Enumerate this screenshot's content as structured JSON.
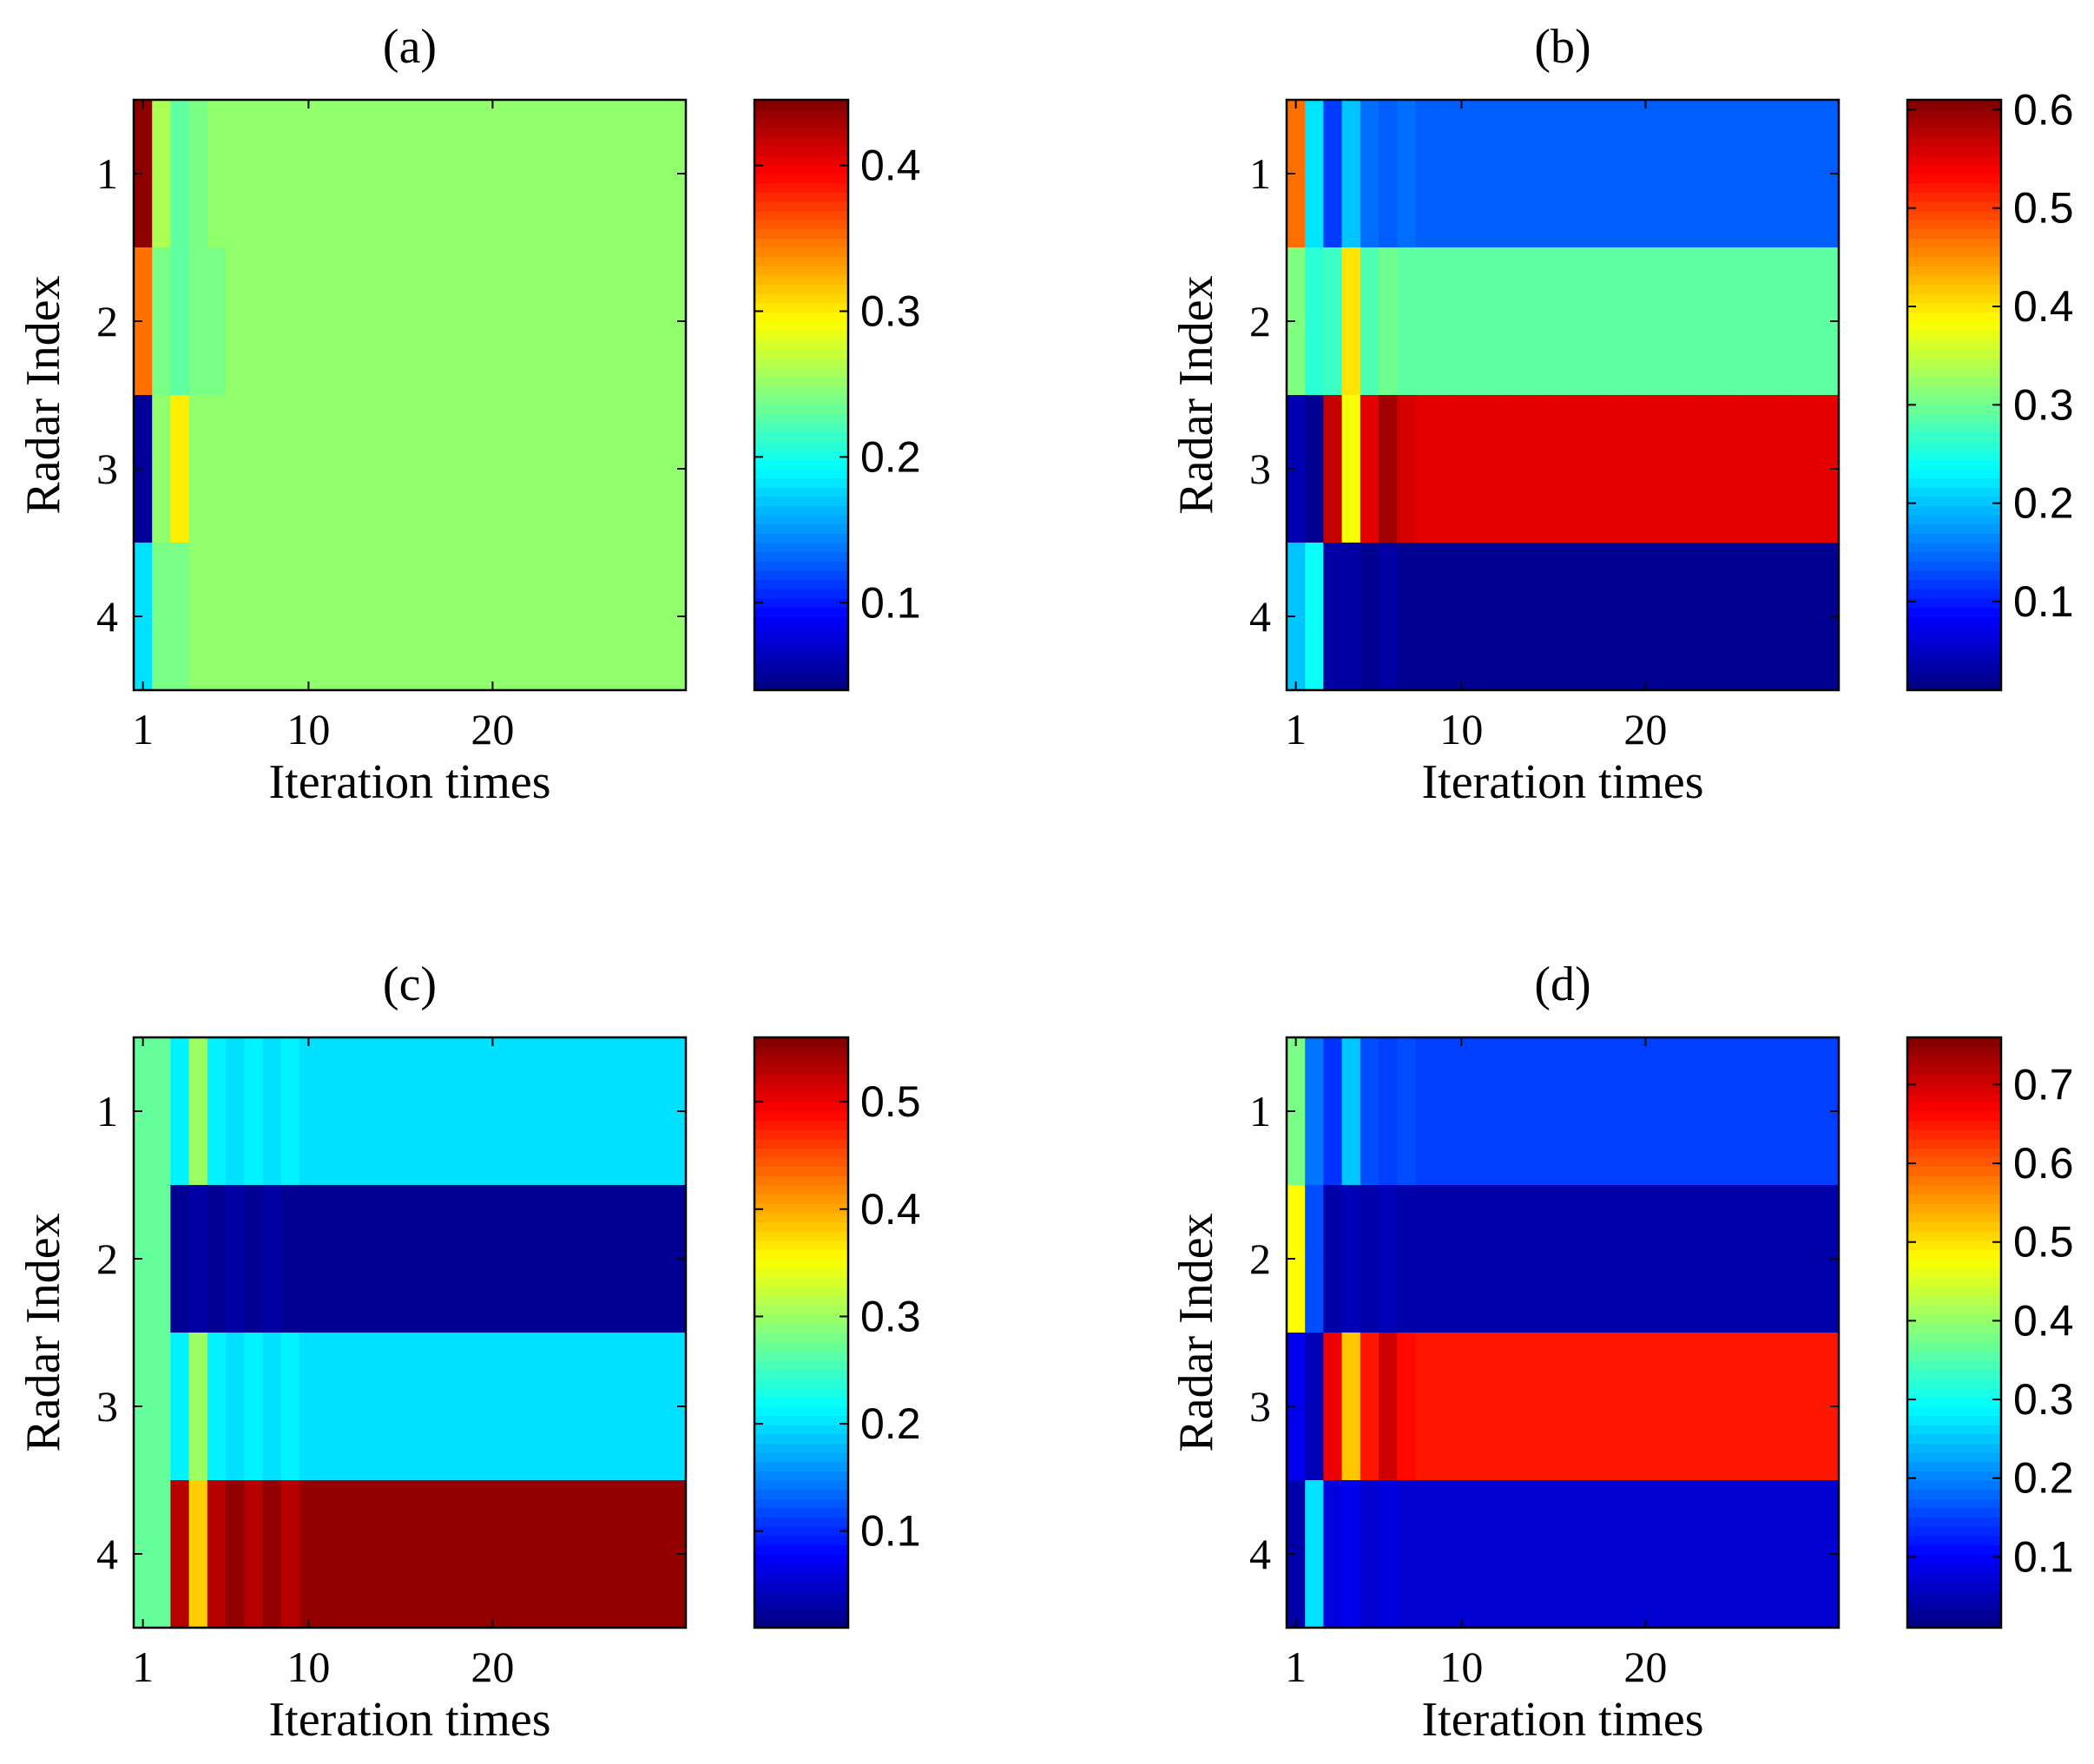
{
  "figure": {
    "colormap": "jet"
  },
  "chart_data": [
    {
      "type": "heatmap",
      "title": "(a)",
      "xlabel": "Iteration times",
      "ylabel": "Radar Index",
      "xlim": [
        0.5,
        30.5
      ],
      "ylim": [
        0.5,
        4.5
      ],
      "xticks": [
        1,
        10,
        20
      ],
      "xtick_labels": [
        "1",
        "10",
        "20"
      ],
      "yticks": [
        1,
        2,
        3,
        4
      ],
      "ytick_labels": [
        "1",
        "2",
        "3",
        "4"
      ],
      "clim": [
        0.04,
        0.445
      ],
      "colorbar_ticks": [
        0.1,
        0.2,
        0.3,
        0.4
      ],
      "colorbar_tick_labels": [
        "0.1",
        "0.2",
        "0.3",
        "0.4"
      ],
      "rows": [
        [
          0.44,
          0.26,
          0.23,
          0.24,
          0.25,
          0.25,
          0.25,
          0.25,
          0.25,
          0.25,
          0.25,
          0.25,
          0.25,
          0.25,
          0.25,
          0.25,
          0.25,
          0.25,
          0.25,
          0.25,
          0.25,
          0.25,
          0.25,
          0.25,
          0.25,
          0.25,
          0.25,
          0.25,
          0.25,
          0.25
        ],
        [
          0.35,
          0.24,
          0.23,
          0.24,
          0.24,
          0.25,
          0.25,
          0.25,
          0.25,
          0.25,
          0.25,
          0.25,
          0.25,
          0.25,
          0.25,
          0.25,
          0.25,
          0.25,
          0.25,
          0.25,
          0.25,
          0.25,
          0.25,
          0.25,
          0.25,
          0.25,
          0.25,
          0.25,
          0.25,
          0.25
        ],
        [
          0.05,
          0.25,
          0.3,
          0.25,
          0.25,
          0.25,
          0.25,
          0.25,
          0.25,
          0.25,
          0.25,
          0.25,
          0.25,
          0.25,
          0.25,
          0.25,
          0.25,
          0.25,
          0.25,
          0.25,
          0.25,
          0.25,
          0.25,
          0.25,
          0.25,
          0.25,
          0.25,
          0.25,
          0.25,
          0.25
        ],
        [
          0.18,
          0.24,
          0.24,
          0.25,
          0.25,
          0.25,
          0.25,
          0.25,
          0.25,
          0.25,
          0.25,
          0.25,
          0.25,
          0.25,
          0.25,
          0.25,
          0.25,
          0.25,
          0.25,
          0.25,
          0.25,
          0.25,
          0.25,
          0.25,
          0.25,
          0.25,
          0.25,
          0.25,
          0.25,
          0.25
        ]
      ]
    },
    {
      "type": "heatmap",
      "title": "(b)",
      "xlabel": "Iteration times",
      "ylabel": "Radar Index",
      "xlim": [
        0.5,
        30.5
      ],
      "ylim": [
        0.5,
        4.5
      ],
      "xticks": [
        1,
        10,
        20
      ],
      "xtick_labels": [
        "1",
        "10",
        "20"
      ],
      "yticks": [
        1,
        2,
        3,
        4
      ],
      "ytick_labels": [
        "1",
        "2",
        "3",
        "4"
      ],
      "clim": [
        0.01,
        0.61
      ],
      "colorbar_ticks": [
        0.1,
        0.2,
        0.3,
        0.4,
        0.5,
        0.6
      ],
      "colorbar_tick_labels": [
        "0.1",
        "0.2",
        "0.3",
        "0.4",
        "0.5",
        "0.6"
      ],
      "rows": [
        [
          0.47,
          0.22,
          0.12,
          0.2,
          0.15,
          0.14,
          0.15,
          0.14,
          0.14,
          0.14,
          0.14,
          0.14,
          0.14,
          0.14,
          0.14,
          0.14,
          0.14,
          0.14,
          0.14,
          0.14,
          0.14,
          0.14,
          0.14,
          0.14,
          0.14,
          0.14,
          0.14,
          0.14,
          0.14,
          0.14
        ],
        [
          0.31,
          0.26,
          0.27,
          0.4,
          0.28,
          0.3,
          0.29,
          0.29,
          0.29,
          0.29,
          0.29,
          0.29,
          0.29,
          0.29,
          0.29,
          0.29,
          0.29,
          0.29,
          0.29,
          0.29,
          0.29,
          0.29,
          0.29,
          0.29,
          0.29,
          0.29,
          0.29,
          0.29,
          0.29,
          0.29
        ],
        [
          0.04,
          0.02,
          0.57,
          0.38,
          0.55,
          0.59,
          0.56,
          0.55,
          0.55,
          0.55,
          0.55,
          0.55,
          0.55,
          0.55,
          0.55,
          0.55,
          0.55,
          0.55,
          0.55,
          0.55,
          0.55,
          0.55,
          0.55,
          0.55,
          0.55,
          0.55,
          0.55,
          0.55,
          0.55,
          0.55
        ],
        [
          0.2,
          0.24,
          0.03,
          0.03,
          0.02,
          0.03,
          0.02,
          0.02,
          0.02,
          0.02,
          0.02,
          0.02,
          0.02,
          0.02,
          0.02,
          0.02,
          0.02,
          0.02,
          0.02,
          0.02,
          0.02,
          0.02,
          0.02,
          0.02,
          0.02,
          0.02,
          0.02,
          0.02,
          0.02,
          0.02
        ]
      ]
    },
    {
      "type": "heatmap",
      "title": "(c)",
      "xlabel": "Iteration times",
      "ylabel": "Radar Index",
      "xlim": [
        0.5,
        30.5
      ],
      "ylim": [
        0.5,
        4.5
      ],
      "xticks": [
        1,
        10,
        20
      ],
      "xtick_labels": [
        "1",
        "10",
        "20"
      ],
      "yticks": [
        1,
        2,
        3,
        4
      ],
      "ytick_labels": [
        "1",
        "2",
        "3",
        "4"
      ],
      "clim": [
        0.01,
        0.56
      ],
      "colorbar_ticks": [
        0.1,
        0.2,
        0.3,
        0.4,
        0.5
      ],
      "colorbar_tick_labels": [
        "0.1",
        "0.2",
        "0.3",
        "0.4",
        "0.5"
      ],
      "rows": [
        [
          0.27,
          0.27,
          0.21,
          0.3,
          0.21,
          0.2,
          0.21,
          0.2,
          0.21,
          0.2,
          0.2,
          0.2,
          0.2,
          0.2,
          0.2,
          0.2,
          0.2,
          0.2,
          0.2,
          0.2,
          0.2,
          0.2,
          0.2,
          0.2,
          0.2,
          0.2,
          0.2,
          0.2,
          0.2,
          0.2
        ],
        [
          0.27,
          0.27,
          0.02,
          0.03,
          0.02,
          0.03,
          0.02,
          0.03,
          0.02,
          0.02,
          0.02,
          0.02,
          0.02,
          0.02,
          0.02,
          0.02,
          0.02,
          0.02,
          0.02,
          0.02,
          0.02,
          0.02,
          0.02,
          0.02,
          0.02,
          0.02,
          0.02,
          0.02,
          0.02,
          0.02
        ],
        [
          0.27,
          0.27,
          0.21,
          0.3,
          0.21,
          0.2,
          0.21,
          0.2,
          0.21,
          0.2,
          0.2,
          0.2,
          0.2,
          0.2,
          0.2,
          0.2,
          0.2,
          0.2,
          0.2,
          0.2,
          0.2,
          0.2,
          0.2,
          0.2,
          0.2,
          0.2,
          0.2,
          0.2,
          0.2,
          0.2
        ],
        [
          0.27,
          0.27,
          0.53,
          0.38,
          0.53,
          0.55,
          0.53,
          0.55,
          0.53,
          0.55,
          0.55,
          0.55,
          0.55,
          0.55,
          0.55,
          0.55,
          0.55,
          0.55,
          0.55,
          0.55,
          0.55,
          0.55,
          0.55,
          0.55,
          0.55,
          0.55,
          0.55,
          0.55,
          0.55,
          0.55
        ]
      ]
    },
    {
      "type": "heatmap",
      "title": "(d)",
      "xlabel": "Iteration times",
      "ylabel": "Radar Index",
      "xlim": [
        0.5,
        30.5
      ],
      "ylim": [
        0.5,
        4.5
      ],
      "xticks": [
        1,
        10,
        20
      ],
      "xtick_labels": [
        "1",
        "10",
        "20"
      ],
      "yticks": [
        1,
        2,
        3,
        4
      ],
      "ytick_labels": [
        "1",
        "2",
        "3",
        "4"
      ],
      "clim": [
        0.01,
        0.76
      ],
      "colorbar_ticks": [
        0.1,
        0.2,
        0.3,
        0.4,
        0.5,
        0.6,
        0.7
      ],
      "colorbar_tick_labels": [
        "0.1",
        "0.2",
        "0.3",
        "0.4",
        "0.5",
        "0.6",
        "0.7"
      ],
      "rows": [
        [
          0.38,
          0.19,
          0.14,
          0.25,
          0.16,
          0.15,
          0.16,
          0.15,
          0.15,
          0.15,
          0.15,
          0.15,
          0.15,
          0.15,
          0.15,
          0.15,
          0.15,
          0.15,
          0.15,
          0.15,
          0.15,
          0.15,
          0.15,
          0.15,
          0.15,
          0.15,
          0.15,
          0.15,
          0.15,
          0.15
        ],
        [
          0.48,
          0.16,
          0.04,
          0.05,
          0.04,
          0.05,
          0.04,
          0.04,
          0.04,
          0.04,
          0.04,
          0.04,
          0.04,
          0.04,
          0.04,
          0.04,
          0.04,
          0.04,
          0.04,
          0.04,
          0.04,
          0.04,
          0.04,
          0.04,
          0.04,
          0.04,
          0.04,
          0.04,
          0.04,
          0.04
        ],
        [
          0.09,
          0.05,
          0.68,
          0.52,
          0.65,
          0.7,
          0.66,
          0.65,
          0.65,
          0.65,
          0.65,
          0.65,
          0.65,
          0.65,
          0.65,
          0.65,
          0.65,
          0.65,
          0.65,
          0.65,
          0.65,
          0.65,
          0.65,
          0.65,
          0.65,
          0.65,
          0.65,
          0.65,
          0.65,
          0.65
        ],
        [
          0.04,
          0.27,
          0.08,
          0.09,
          0.07,
          0.08,
          0.07,
          0.07,
          0.07,
          0.07,
          0.07,
          0.07,
          0.07,
          0.07,
          0.07,
          0.07,
          0.07,
          0.07,
          0.07,
          0.07,
          0.07,
          0.07,
          0.07,
          0.07,
          0.07,
          0.07,
          0.07,
          0.07,
          0.07,
          0.07
        ]
      ]
    }
  ]
}
